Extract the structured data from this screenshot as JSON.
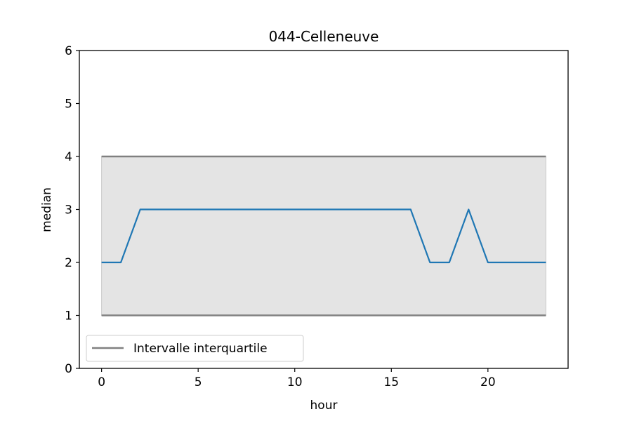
{
  "chart_data": {
    "type": "line",
    "title": "044-Celleneuve",
    "xlabel": "hour",
    "ylabel": "median",
    "xlim": [
      -1.15,
      24.15
    ],
    "ylim": [
      0,
      6
    ],
    "xticks": [
      0,
      5,
      10,
      15,
      20
    ],
    "yticks": [
      0,
      1,
      2,
      3,
      4,
      5,
      6
    ],
    "grid": false,
    "x": [
      0,
      1,
      2,
      3,
      4,
      5,
      6,
      7,
      8,
      9,
      10,
      11,
      12,
      13,
      14,
      15,
      16,
      17,
      18,
      19,
      20,
      21,
      22,
      23
    ],
    "series": [
      {
        "name": "",
        "color": "#1f77b4",
        "values": [
          2,
          2,
          3,
          3,
          3,
          3,
          3,
          3,
          3,
          3,
          3,
          3,
          3,
          3,
          3,
          3,
          3,
          2,
          2,
          3,
          2,
          2,
          2,
          2
        ]
      }
    ],
    "band": {
      "name": "Intervalle interquartile",
      "lower": 1,
      "upper": 4,
      "x_range": [
        0,
        23
      ],
      "line_color": "#808080",
      "fill_color": "#e4e4e4"
    },
    "legend": {
      "placement": "lower-left",
      "entries": [
        "Intervalle interquartile"
      ]
    }
  }
}
